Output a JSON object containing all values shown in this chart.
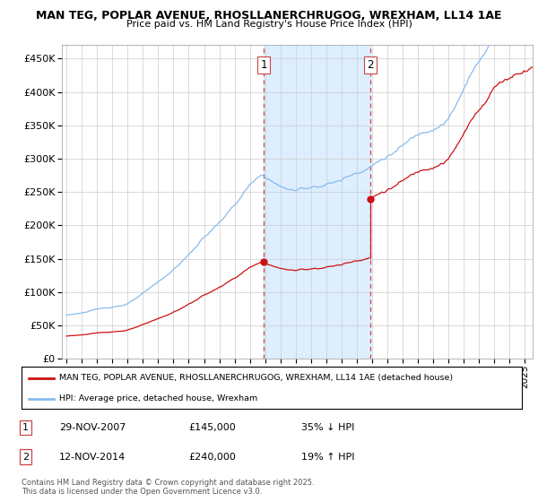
{
  "title1": "MAN TEG, POPLAR AVENUE, RHOSLLANERCHRUGOG, WREXHAM, LL14 1AE",
  "title2": "Price paid vs. HM Land Registry's House Price Index (HPI)",
  "yticks": [
    0,
    50000,
    100000,
    150000,
    200000,
    250000,
    300000,
    350000,
    400000,
    450000
  ],
  "ylim": [
    0,
    470000
  ],
  "xlim_start": 1994.7,
  "xlim_end": 2025.5,
  "background_color": "#ffffff",
  "plot_bg_color": "#ffffff",
  "grid_color": "#cccccc",
  "transaction1_x": 2007.91,
  "transaction1_y": 145000,
  "transaction2_x": 2014.87,
  "transaction2_y": 240000,
  "shade_color": "#ddeeff",
  "vline_color": "#cc4444",
  "hpi_color": "#88bbee",
  "price_color": "#cc1111",
  "legend_label1": "MAN TEG, POPLAR AVENUE, RHOSLLANERCHRUGOG, WREXHAM, LL14 1AE (detached house)",
  "legend_label2": "HPI: Average price, detached house, Wrexham",
  "table_entries": [
    {
      "num": "1",
      "date": "29-NOV-2007",
      "price": "£145,000",
      "hpi": "35% ↓ HPI"
    },
    {
      "num": "2",
      "date": "12-NOV-2014",
      "price": "£240,000",
      "hpi": "19% ↑ HPI"
    }
  ],
  "footer": "Contains HM Land Registry data © Crown copyright and database right 2025.\nThis data is licensed under the Open Government Licence v3.0."
}
